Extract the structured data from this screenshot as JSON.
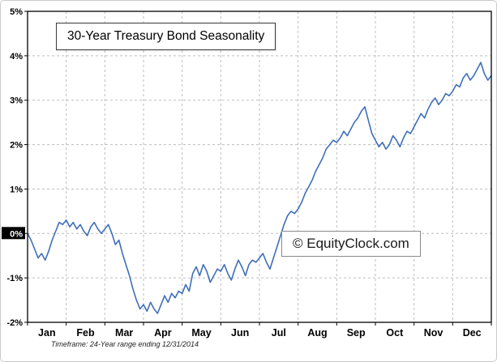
{
  "chart": {
    "title": "30-Year Treasury Bond Seasonality",
    "watermark": "© EquityClock.com",
    "footnote": "Timeframe: 24-Year range ending 12/31/2014"
  },
  "chart_data": {
    "type": "line",
    "title": "30-Year Treasury Bond Seasonality",
    "x_categories": [
      "Jan",
      "Feb",
      "Mar",
      "Apr",
      "May",
      "Jun",
      "Jul",
      "Aug",
      "Sep",
      "Oct",
      "Nov",
      "Dec"
    ],
    "ylim": [
      -2,
      5
    ],
    "y_ticks": [
      5,
      4,
      3,
      2,
      1,
      0,
      -1,
      -2
    ],
    "y_tick_format": "percent",
    "grid": true,
    "legend": "none",
    "colors": {
      "line": "#3f6fba",
      "grid": "#bdbdbd",
      "axis": "#000000",
      "zero_label_bg": "#000000",
      "zero_label_text": "#ffffff"
    },
    "series": [
      {
        "name": "30-Year Treasury Bond Seasonality (24-Year range ending 12/31/2014)",
        "values": [
          0.0,
          -0.15,
          -0.35,
          -0.55,
          -0.45,
          -0.6,
          -0.4,
          -0.15,
          0.05,
          0.25,
          0.2,
          0.3,
          0.15,
          0.25,
          0.1,
          0.2,
          0.05,
          -0.05,
          0.15,
          0.25,
          0.1,
          0.0,
          0.1,
          0.2,
          0.0,
          -0.25,
          -0.15,
          -0.45,
          -0.7,
          -0.95,
          -1.25,
          -1.5,
          -1.7,
          -1.6,
          -1.75,
          -1.55,
          -1.7,
          -1.8,
          -1.6,
          -1.4,
          -1.55,
          -1.35,
          -1.45,
          -1.3,
          -1.35,
          -1.15,
          -1.3,
          -0.9,
          -0.75,
          -0.95,
          -0.7,
          -0.85,
          -1.1,
          -0.95,
          -0.8,
          -0.85,
          -0.7,
          -0.9,
          -1.05,
          -0.8,
          -0.6,
          -0.75,
          -0.95,
          -0.7,
          -0.6,
          -0.65,
          -0.55,
          -0.45,
          -0.65,
          -0.8,
          -0.55,
          -0.3,
          -0.05,
          0.2,
          0.4,
          0.5,
          0.45,
          0.55,
          0.7,
          0.9,
          1.05,
          1.2,
          1.4,
          1.55,
          1.7,
          1.9,
          2.0,
          2.1,
          2.05,
          2.15,
          2.3,
          2.2,
          2.35,
          2.5,
          2.6,
          2.75,
          2.85,
          2.55,
          2.25,
          2.1,
          1.95,
          2.05,
          1.9,
          2.0,
          2.2,
          2.1,
          1.95,
          2.15,
          2.3,
          2.25,
          2.4,
          2.55,
          2.7,
          2.6,
          2.8,
          2.95,
          3.05,
          2.9,
          3.0,
          3.15,
          3.1,
          3.2,
          3.35,
          3.3,
          3.5,
          3.6,
          3.45,
          3.55,
          3.7,
          3.85,
          3.6,
          3.45,
          3.55
        ]
      }
    ]
  }
}
